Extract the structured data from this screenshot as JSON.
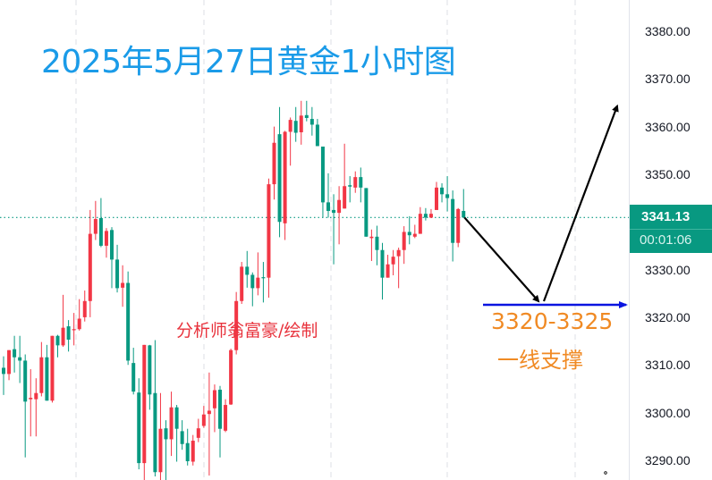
{
  "chart_data": {
    "type": "candlestick",
    "title": "2025年5月27日黄金1小时图",
    "timeframe": "1小时",
    "up_color": "#f23645",
    "down_color": "#089981",
    "ylim": [
      3286,
      3385
    ],
    "y_ticks": [
      "3380.00",
      "3370.00",
      "3360.00",
      "3350.00",
      "3340.00",
      "3330.00",
      "3320.00",
      "3310.00",
      "3300.00",
      "3290.00"
    ],
    "y_tick_values": [
      3380,
      3370,
      3360,
      3350,
      3340,
      3330,
      3320,
      3310,
      3300,
      3290
    ],
    "grid": "vertical dashed",
    "current_price": "3341.13",
    "current_price_value": 3341.13,
    "countdown": "00:01:06",
    "ohlc": [
      [
        3309.6,
        3312.0,
        3303.9,
        3308.3
      ],
      [
        3308.3,
        3313.3,
        3307.0,
        3313.3
      ],
      [
        3313.5,
        3316.3,
        3308.6,
        3311.8
      ],
      [
        3311.8,
        3316.3,
        3306.4,
        3311.1
      ],
      [
        3311.1,
        3312.4,
        3290.8,
        3302.5
      ],
      [
        3303.0,
        3309.3,
        3295.2,
        3303.3
      ],
      [
        3303.0,
        3307.4,
        3295.2,
        3304.3
      ],
      [
        3304.3,
        3315.0,
        3303.6,
        3311.8
      ],
      [
        3311.8,
        3314.4,
        3302.7,
        3302.7
      ],
      [
        3302.7,
        3316.3,
        3302.3,
        3316.3
      ],
      [
        3316.3,
        3316.5,
        3311.8,
        3314.3
      ],
      [
        3314.3,
        3324.9,
        3314.0,
        3318.0
      ],
      [
        3318.3,
        3319.6,
        3313.0,
        3315.5
      ],
      [
        3317.5,
        3321.1,
        3314.3,
        3317.7
      ],
      [
        3317.7,
        3324.0,
        3317.4,
        3319.9
      ],
      [
        3320.2,
        3325.8,
        3319.3,
        3323.6
      ],
      [
        3323.6,
        3342.7,
        3320.2,
        3337.7
      ],
      [
        3337.7,
        3344.6,
        3336.4,
        3340.8
      ],
      [
        3341.0,
        3345.2,
        3334.9,
        3335.2
      ],
      [
        3335.2,
        3338.9,
        3332.7,
        3338.3
      ],
      [
        3338.5,
        3339.1,
        3326.3,
        3332.3
      ],
      [
        3332.3,
        3335.4,
        3325.4,
        3326.3
      ],
      [
        3326.4,
        3331.1,
        3322.4,
        3327.4
      ],
      [
        3327.4,
        3329.8,
        3310.2,
        3311.1
      ],
      [
        3310.6,
        3313.8,
        3304.0,
        3304.6
      ],
      [
        3304.4,
        3307.4,
        3288.3,
        3289.6
      ],
      [
        3289.6,
        3314.4,
        3286.0,
        3314.4
      ],
      [
        3314.3,
        3314.4,
        3300.8,
        3304.0
      ],
      [
        3304.3,
        3315.4,
        3286.8,
        3287.7
      ],
      [
        3287.7,
        3304.3,
        3286.0,
        3296.8
      ],
      [
        3296.9,
        3298.6,
        3286.0,
        3294.6
      ],
      [
        3294.6,
        3304.6,
        3291.1,
        3301.3
      ],
      [
        3301.3,
        3301.8,
        3289.9,
        3296.8
      ],
      [
        3296.3,
        3298.6,
        3292.4,
        3293.6
      ],
      [
        3293.8,
        3296.8,
        3289.1,
        3290.0
      ],
      [
        3289.9,
        3295.5,
        3289.1,
        3294.3
      ],
      [
        3294.9,
        3298.9,
        3294.0,
        3296.9
      ],
      [
        3297.4,
        3301.6,
        3297.0,
        3299.8
      ],
      [
        3299.9,
        3308.6,
        3287.0,
        3300.6
      ],
      [
        3301.1,
        3306.1,
        3296.1,
        3304.9
      ],
      [
        3305.0,
        3305.8,
        3290.8,
        3296.8
      ],
      [
        3296.4,
        3303.0,
        3296.1,
        3301.8
      ],
      [
        3301.9,
        3313.6,
        3301.8,
        3313.3
      ],
      [
        3313.3,
        3325.5,
        3312.4,
        3323.6
      ],
      [
        3323.6,
        3331.8,
        3323.0,
        3330.8
      ],
      [
        3330.8,
        3334.1,
        3326.4,
        3329.1
      ],
      [
        3329.1,
        3329.6,
        3322.5,
        3326.3
      ],
      [
        3326.3,
        3333.8,
        3324.8,
        3328.5
      ],
      [
        3328.6,
        3331.8,
        3323.3,
        3328.5
      ],
      [
        3328.5,
        3349.3,
        3324.3,
        3348.1
      ],
      [
        3348.1,
        3360.2,
        3344.9,
        3356.8
      ],
      [
        3358.6,
        3364.3,
        3337.0,
        3340.2
      ],
      [
        3339.9,
        3359.3,
        3336.4,
        3359.1
      ],
      [
        3359.1,
        3362.1,
        3352.0,
        3361.6
      ],
      [
        3361.4,
        3364.3,
        3357.0,
        3358.9
      ],
      [
        3359.0,
        3365.6,
        3356.4,
        3362.5
      ],
      [
        3362.6,
        3365.6,
        3361.3,
        3362.0
      ],
      [
        3361.8,
        3364.3,
        3358.3,
        3360.6
      ],
      [
        3360.6,
        3361.8,
        3356.1,
        3356.1
      ],
      [
        3356.0,
        3356.0,
        3341.1,
        3344.3
      ],
      [
        3344.3,
        3350.4,
        3341.1,
        3342.5
      ],
      [
        3342.7,
        3346.0,
        3331.3,
        3342.1
      ],
      [
        3342.1,
        3347.7,
        3335.5,
        3344.8
      ],
      [
        3343.0,
        3356.6,
        3343.0,
        3347.7
      ],
      [
        3347.9,
        3349.8,
        3344.3,
        3347.6
      ],
      [
        3347.4,
        3350.8,
        3346.3,
        3349.6
      ],
      [
        3349.6,
        3351.6,
        3344.3,
        3347.4
      ],
      [
        3347.3,
        3347.3,
        3337.1,
        3337.1
      ],
      [
        3336.8,
        3338.6,
        3332.0,
        3337.1
      ],
      [
        3337.1,
        3339.4,
        3331.1,
        3334.3
      ],
      [
        3334.3,
        3335.8,
        3323.9,
        3328.5
      ],
      [
        3328.5,
        3333.3,
        3328.5,
        3331.3
      ],
      [
        3331.3,
        3334.3,
        3329.0,
        3332.9
      ],
      [
        3333.0,
        3334.8,
        3326.3,
        3334.3
      ],
      [
        3334.3,
        3339.3,
        3331.4,
        3338.1
      ],
      [
        3338.1,
        3341.4,
        3335.5,
        3337.4
      ],
      [
        3337.1,
        3339.6,
        3336.8,
        3337.7
      ],
      [
        3337.7,
        3343.3,
        3337.7,
        3341.9
      ],
      [
        3341.9,
        3343.1,
        3340.5,
        3341.1
      ],
      [
        3341.1,
        3342.9,
        3341.0,
        3341.9
      ],
      [
        3342.7,
        3348.6,
        3342.7,
        3347.4
      ],
      [
        3347.4,
        3348.3,
        3344.3,
        3346.0
      ],
      [
        3346.0,
        3349.8,
        3342.4,
        3345.2
      ],
      [
        3345.0,
        3346.8,
        3331.9,
        3335.8
      ],
      [
        3335.8,
        3343.1,
        3334.9,
        3342.9
      ],
      [
        3342.5,
        3347.1,
        3341.1,
        3341.13
      ]
    ],
    "annotations": {
      "author": "分析师翁富豪/绘制",
      "support_range": "3320-3325",
      "support_label": "一线支撑",
      "support_level": 3323,
      "projection": {
        "down_to": 3323,
        "up_to": 3364.5
      },
      "arrow_color": "#000000",
      "support_line_color": "#0a14e0"
    }
  }
}
